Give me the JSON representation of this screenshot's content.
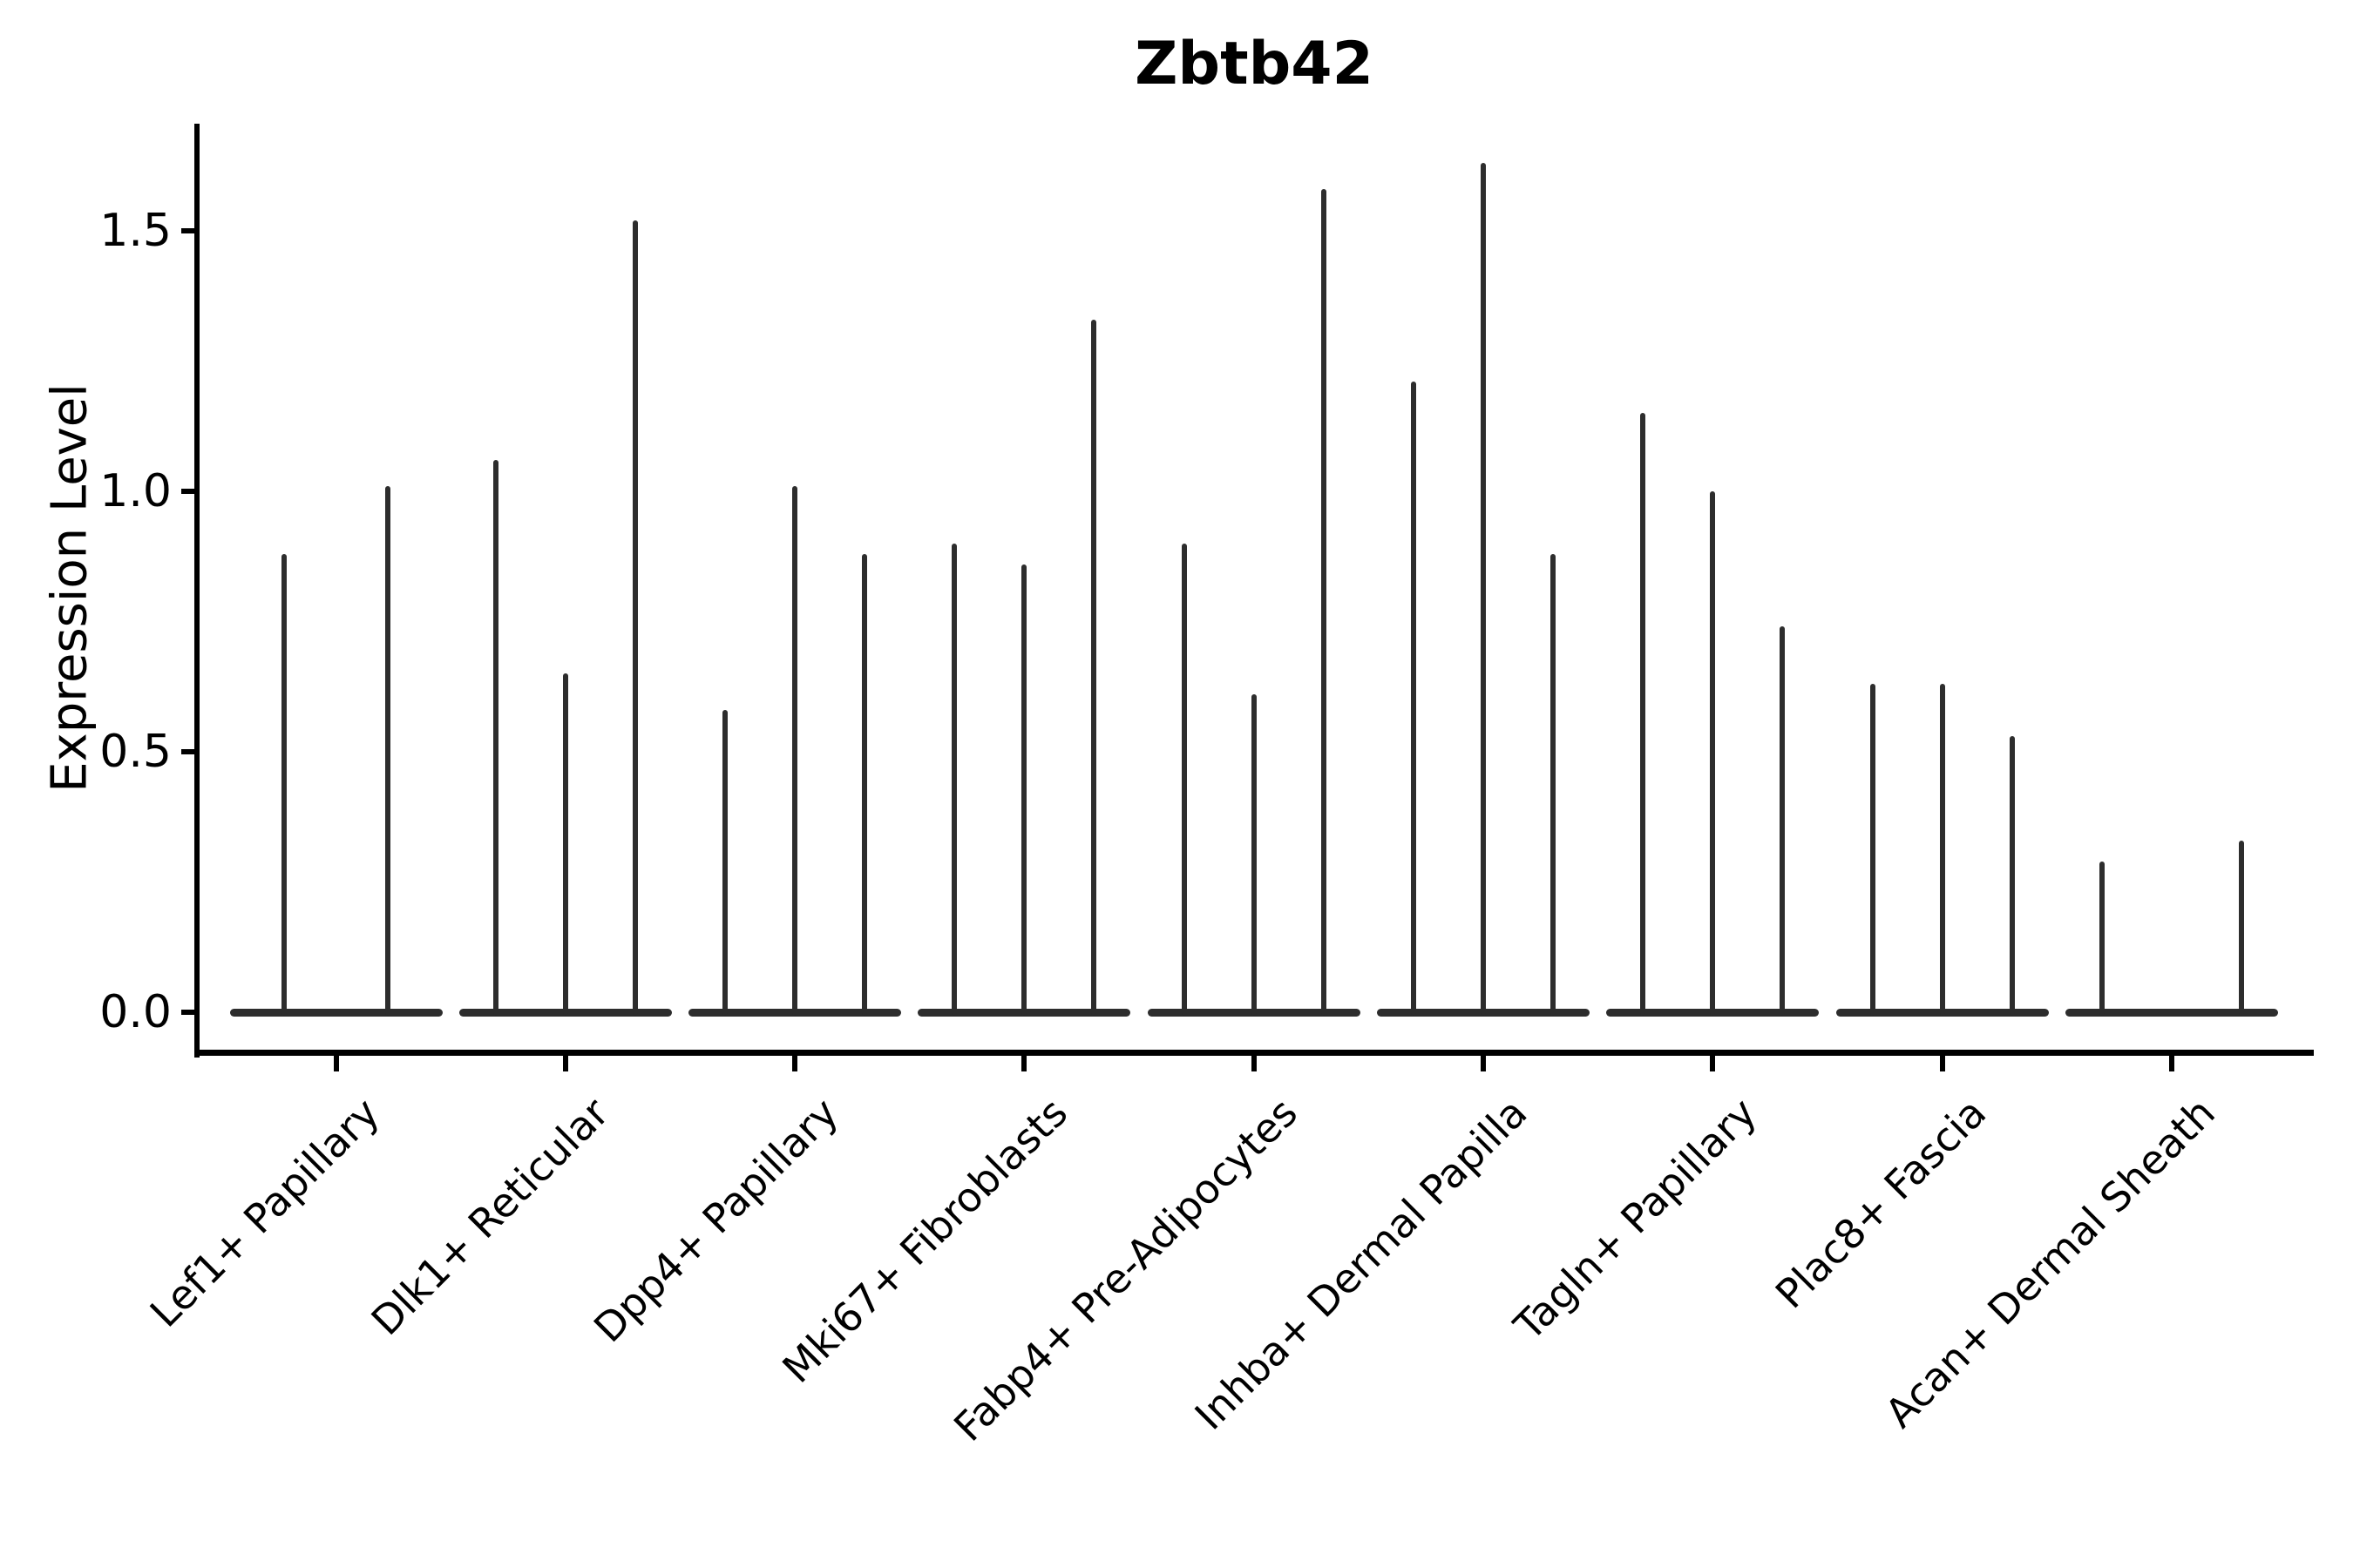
{
  "title": "Zbtb42",
  "ylabel": "Expression Level",
  "colors": {
    "background": "#ffffff",
    "axis": "#000000",
    "text": "#000000",
    "violin": "#2d2d2d"
  },
  "chart_data": {
    "type": "violin",
    "title": "Zbtb42",
    "xlabel": "",
    "ylabel": "Expression Level",
    "ylim": [
      -0.08,
      1.71
    ],
    "yticks": [
      "0.0",
      "0.5",
      "1.0",
      "1.5"
    ],
    "ytick_values": [
      0.0,
      0.5,
      1.0,
      1.5
    ],
    "grid": false,
    "legend": "none",
    "xtick_rotation_deg": 45,
    "categories": [
      "Lef1+ Papillary",
      "Dlk1+ Reticular",
      "Dpp4+ Papillary",
      "Mki67+ Fibroblasts",
      "Fabp4+ Pre-Adipocytes",
      "Inhba+ Dermal Papilla",
      "Tagln+ Papillary",
      "Plac8+ Fascia",
      "Acan+ Dermal Sheath"
    ],
    "note": "Needle-thin violins collapsed at 0; values below are the max expression (spike tip) of each violin within a category; dx is the violin's horizontal dodge offset from the category center in px.",
    "groups": [
      {
        "label": "Lef1+ Papillary",
        "violins": [
          {
            "dx": -59.5,
            "max": 0.88
          },
          {
            "dx": 59.5,
            "max": 1.01
          }
        ]
      },
      {
        "label": "Dlk1+ Reticular",
        "violins": [
          {
            "dx": -80,
            "max": 1.06
          },
          {
            "dx": 0,
            "max": 0.65
          },
          {
            "dx": 80,
            "max": 1.52
          }
        ]
      },
      {
        "label": "Dpp4+ Papillary",
        "violins": [
          {
            "dx": -80,
            "max": 0.58
          },
          {
            "dx": 0,
            "max": 1.01
          },
          {
            "dx": 80,
            "max": 0.88
          }
        ]
      },
      {
        "label": "Mki67+ Fibroblasts",
        "violins": [
          {
            "dx": -80,
            "max": 0.9
          },
          {
            "dx": 0,
            "max": 0.86
          },
          {
            "dx": 80,
            "max": 1.33
          }
        ]
      },
      {
        "label": "Fabp4+ Pre-Adipocytes",
        "violins": [
          {
            "dx": -80,
            "max": 0.9
          },
          {
            "dx": 0,
            "max": 0.61
          },
          {
            "dx": 80,
            "max": 1.58
          }
        ]
      },
      {
        "label": "Inhba+ Dermal Papilla",
        "violins": [
          {
            "dx": -80,
            "max": 1.21
          },
          {
            "dx": 0,
            "max": 1.63
          },
          {
            "dx": 80,
            "max": 0.88
          }
        ]
      },
      {
        "label": "Tagln+ Papillary",
        "violins": [
          {
            "dx": -80,
            "max": 1.15
          },
          {
            "dx": 0,
            "max": 1.0
          },
          {
            "dx": 80,
            "max": 0.74
          }
        ]
      },
      {
        "label": "Plac8+ Fascia",
        "violins": [
          {
            "dx": -80,
            "max": 0.63
          },
          {
            "dx": 0,
            "max": 0.63
          },
          {
            "dx": 80,
            "max": 0.53
          }
        ]
      },
      {
        "label": "Acan+ Dermal Sheath",
        "violins": [
          {
            "dx": -80,
            "max": 0.29
          },
          {
            "dx": 80,
            "max": 0.33
          }
        ]
      }
    ]
  }
}
